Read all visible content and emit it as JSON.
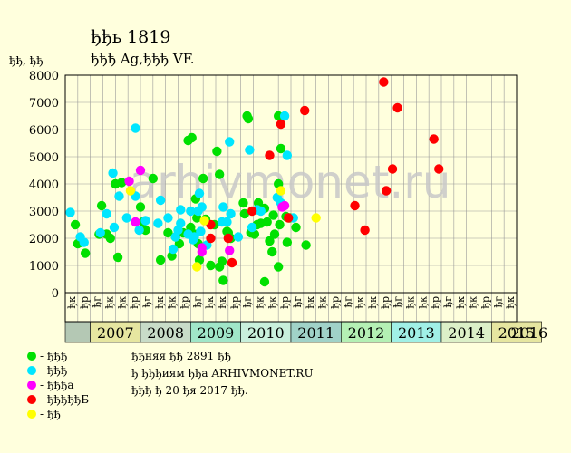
{
  "header": {
    "title": "ђђь 1819",
    "subtitle": "ђђђ Ag,ђђђ VF.",
    "ylabel": "ђђ, ђђ"
  },
  "legend": [
    {
      "label": "- ђђђ",
      "color": "#00e000"
    },
    {
      "label": "- ђђђ",
      "color": "#00e6ff"
    },
    {
      "label": "- ђђђа",
      "color": "#ff00ff"
    },
    {
      "label": "- ђђђђђБ",
      "color": "#ff0000"
    },
    {
      "label": "- ђђ",
      "color": "#ffff00"
    }
  ],
  "info": [
    "ђђняя ђђ 2891 ђђ",
    "ђ ђђђиям ђђа ARHIVMONET.RU",
    "ђђђ ђ 20 ђя 2017 ђђ."
  ],
  "watermark": "arhivmonet.ru",
  "chart_data": {
    "type": "scatter",
    "ylim": [
      0,
      8000
    ],
    "yticks": [
      0,
      1000,
      2000,
      3000,
      4000,
      5000,
      6000,
      7000,
      8000
    ],
    "grid": true,
    "quarter_labels": [
      "ђк",
      "ђр",
      "ђг",
      "ђк",
      "ђк",
      "ђр",
      "ђг",
      "ђк",
      "ђк",
      "ђр",
      "ђг",
      "ђк",
      "ђк",
      "ђр",
      "ђг",
      "ђк",
      "ђк",
      "ђр",
      "ђг",
      "ђк",
      "ђк",
      "ђр",
      "ђг",
      "ђк",
      "ђк",
      "ђр",
      "ђг",
      "ђк",
      "ђк",
      "ђр",
      "ђг",
      "ђк",
      "ђк",
      "ђр",
      "ђг",
      "ђк"
    ],
    "years": [
      "2007",
      "2008",
      "2009",
      "2010",
      "2011",
      "2012",
      "2013",
      "2014",
      "2015",
      "2016"
    ],
    "year_colors": [
      "#e6e6a0",
      "#c8dcc8",
      "#a0e6c8",
      "#c8f0dc",
      "#a0d2c8",
      "#b4f0b4",
      "#a0f0e6",
      "#dcf0c8",
      "#e6e6a0",
      "#dcdcb4"
    ],
    "series": [
      {
        "name": "- ђђђ",
        "color": "#00e000",
        "points": [
          [
            0.8,
            2500
          ],
          [
            1.0,
            1800
          ],
          [
            1.3,
            1850
          ],
          [
            1.6,
            1450
          ],
          [
            2.7,
            2150
          ],
          [
            2.9,
            3200
          ],
          [
            3.3,
            2150
          ],
          [
            3.6,
            2000
          ],
          [
            4.0,
            4000
          ],
          [
            4.2,
            1300
          ],
          [
            4.5,
            4050
          ],
          [
            6.0,
            3150
          ],
          [
            6.2,
            2600
          ],
          [
            6.4,
            2300
          ],
          [
            7.0,
            4200
          ],
          [
            7.6,
            1200
          ],
          [
            8.2,
            2200
          ],
          [
            8.5,
            1350
          ],
          [
            8.8,
            2050
          ],
          [
            9.1,
            1800
          ],
          [
            9.4,
            2200
          ],
          [
            9.8,
            5600
          ],
          [
            10.1,
            5700
          ],
          [
            10.0,
            2400
          ],
          [
            10.3,
            2150
          ],
          [
            10.4,
            3450
          ],
          [
            10.5,
            2750
          ],
          [
            10.6,
            1800
          ],
          [
            10.7,
            1200
          ],
          [
            11.0,
            4200
          ],
          [
            11.2,
            2700
          ],
          [
            11.6,
            1000
          ],
          [
            11.9,
            2500
          ],
          [
            12.1,
            5200
          ],
          [
            12.3,
            4350
          ],
          [
            12.3,
            950
          ],
          [
            12.5,
            1150
          ],
          [
            12.6,
            450
          ],
          [
            12.9,
            2250
          ],
          [
            13.0,
            2200
          ],
          [
            13.2,
            2000
          ],
          [
            14.2,
            3300
          ],
          [
            14.3,
            2900
          ],
          [
            14.5,
            6500
          ],
          [
            14.6,
            6400
          ],
          [
            14.8,
            2200
          ],
          [
            15.1,
            2150
          ],
          [
            15.3,
            2500
          ],
          [
            15.4,
            3300
          ],
          [
            15.6,
            2550
          ],
          [
            15.9,
            400
          ],
          [
            15.9,
            3100
          ],
          [
            16.1,
            2600
          ],
          [
            16.3,
            1900
          ],
          [
            16.5,
            1500
          ],
          [
            16.6,
            2850
          ],
          [
            16.7,
            2150
          ],
          [
            17.0,
            6500
          ],
          [
            17.0,
            4000
          ],
          [
            17.0,
            950
          ],
          [
            17.1,
            2500
          ],
          [
            17.2,
            5300
          ],
          [
            17.6,
            2800
          ],
          [
            17.7,
            1850
          ],
          [
            17.9,
            2750
          ],
          [
            18.4,
            2400
          ],
          [
            19.2,
            1750
          ]
        ]
      },
      {
        "name": "- ђђђ",
        "color": "#00e6ff",
        "points": [
          [
            0.4,
            2950
          ],
          [
            1.2,
            2050
          ],
          [
            1.5,
            1850
          ],
          [
            2.8,
            2200
          ],
          [
            3.3,
            2900
          ],
          [
            3.8,
            4400
          ],
          [
            3.9,
            2400
          ],
          [
            4.3,
            3550
          ],
          [
            4.9,
            2750
          ],
          [
            5.6,
            6050
          ],
          [
            5.6,
            3550
          ],
          [
            5.9,
            2300
          ],
          [
            6.4,
            2650
          ],
          [
            7.4,
            2550
          ],
          [
            7.6,
            3400
          ],
          [
            8.2,
            2750
          ],
          [
            8.6,
            1600
          ],
          [
            8.8,
            2050
          ],
          [
            9.0,
            2300
          ],
          [
            9.2,
            2550
          ],
          [
            9.2,
            3050
          ],
          [
            9.8,
            2150
          ],
          [
            10.0,
            3000
          ],
          [
            10.2,
            1950
          ],
          [
            10.3,
            2050
          ],
          [
            10.6,
            3000
          ],
          [
            10.7,
            3650
          ],
          [
            10.8,
            2250
          ],
          [
            10.9,
            3150
          ],
          [
            11.3,
            1750
          ],
          [
            12.5,
            2600
          ],
          [
            12.6,
            3150
          ],
          [
            12.9,
            2600
          ],
          [
            13.1,
            5550
          ],
          [
            13.2,
            2900
          ],
          [
            13.8,
            2050
          ],
          [
            14.7,
            5250
          ],
          [
            14.9,
            2400
          ],
          [
            15.3,
            3050
          ],
          [
            15.6,
            3000
          ],
          [
            16.9,
            3500
          ],
          [
            17.2,
            3300
          ],
          [
            17.5,
            6500
          ],
          [
            17.7,
            5050
          ],
          [
            18.2,
            2750
          ]
        ]
      },
      {
        "name": "- ђђђа",
        "color": "#ff00ff",
        "points": [
          [
            5.1,
            4100
          ],
          [
            5.6,
            2600
          ],
          [
            6.0,
            4500
          ],
          [
            10.9,
            1500
          ],
          [
            10.9,
            1650
          ],
          [
            13.1,
            1550
          ],
          [
            17.3,
            3150
          ],
          [
            17.5,
            3200
          ]
        ]
      },
      {
        "name": "- ђђђђђБ",
        "color": "#ff0000",
        "points": [
          [
            11.6,
            2500
          ],
          [
            11.6,
            2000
          ],
          [
            13.0,
            2000
          ],
          [
            13.3,
            1100
          ],
          [
            14.9,
            3000
          ],
          [
            16.3,
            5050
          ],
          [
            17.2,
            6200
          ],
          [
            17.8,
            2750
          ],
          [
            19.1,
            6700
          ],
          [
            23.1,
            3200
          ],
          [
            23.9,
            2300
          ],
          [
            25.4,
            7750
          ],
          [
            25.6,
            3750
          ],
          [
            26.1,
            4550
          ],
          [
            26.5,
            6800
          ],
          [
            29.4,
            5650
          ],
          [
            29.8,
            4550
          ]
        ]
      },
      {
        "name": "- ђђ",
        "color": "#ffff00",
        "points": [
          [
            5.2,
            3750
          ],
          [
            10.5,
            950
          ],
          [
            11.1,
            2650
          ],
          [
            17.2,
            3750
          ],
          [
            20.0,
            2750
          ]
        ]
      }
    ]
  }
}
